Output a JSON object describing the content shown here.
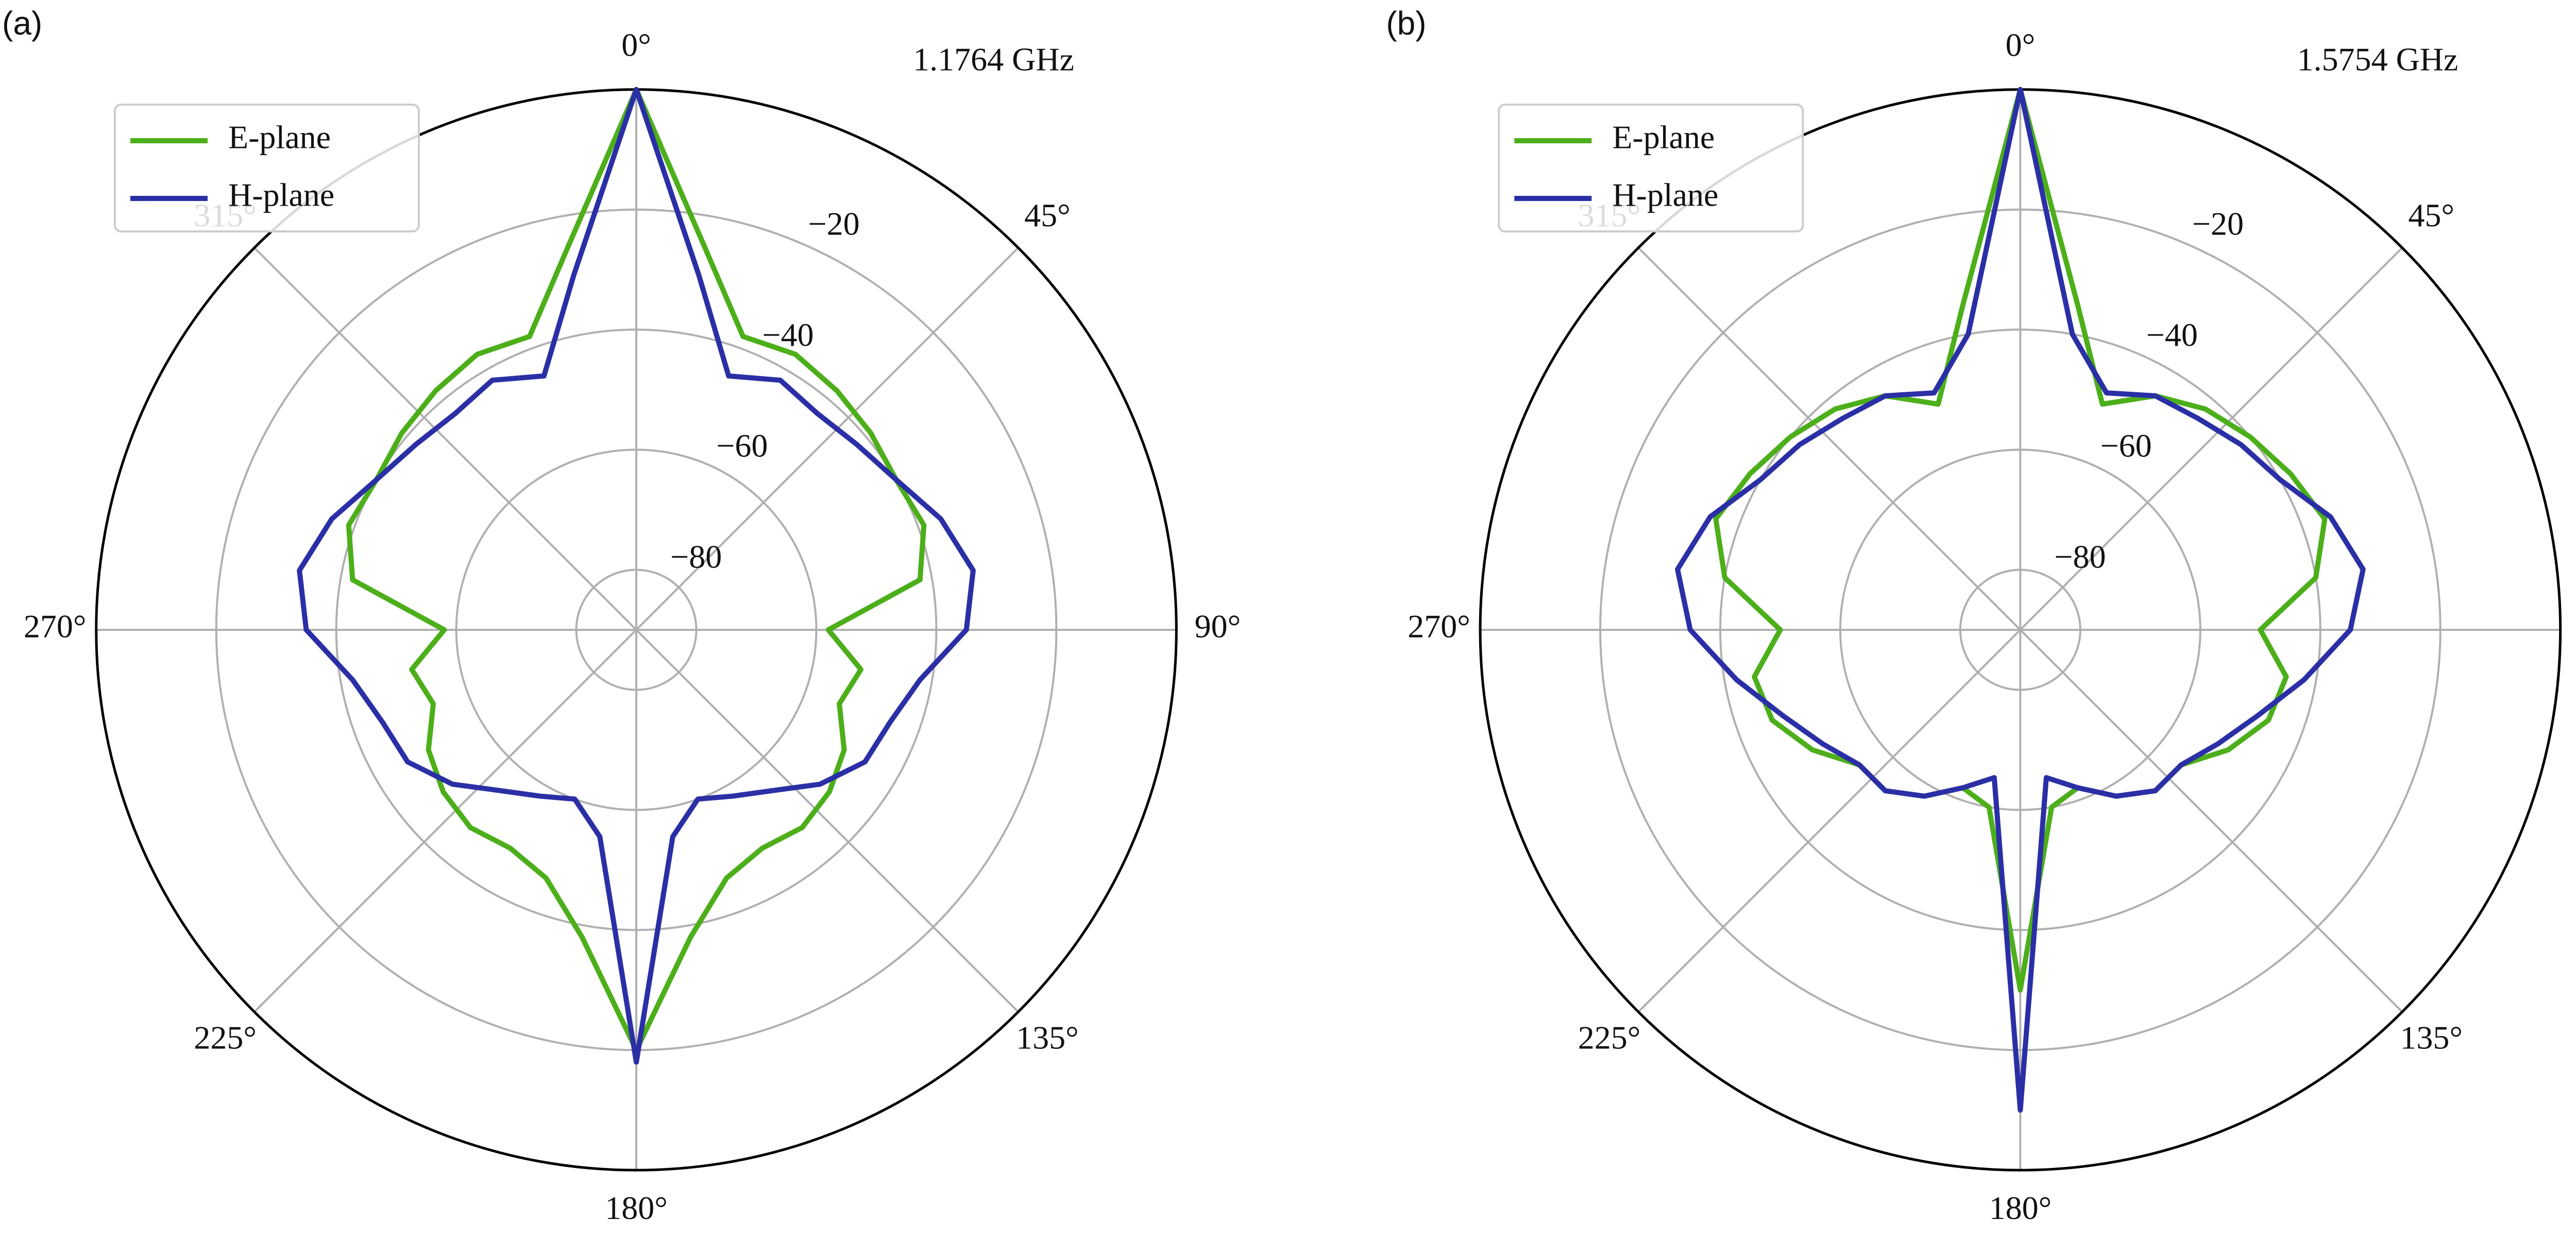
{
  "chart_data": [
    {
      "type": "polar",
      "panel_label": "(a)",
      "annotation": "1.1764 GHz",
      "theta": [
        0,
        10,
        20,
        30,
        40,
        50,
        60,
        70,
        80,
        90,
        100,
        110,
        120,
        130,
        140,
        150,
        160,
        170,
        180,
        190,
        200,
        210,
        220,
        230,
        240,
        250,
        260,
        270,
        280,
        290,
        300,
        310,
        320,
        330,
        340,
        350
      ],
      "series": [
        {
          "name": "E-plane",
          "color": "#4caf1a",
          "values": [
            0,
            -25,
            -38,
            -37,
            -38,
            -39,
            -40,
            -39,
            -42,
            -58,
            -52,
            -54,
            -50,
            -48,
            -47,
            -48,
            -46,
            -38,
            -20,
            -38,
            -46,
            -48,
            -47,
            -48,
            -50,
            -54,
            -52,
            -58,
            -42,
            -39,
            -40,
            -39,
            -38,
            -37,
            -38,
            -25
          ]
        },
        {
          "name": "H-plane",
          "color": "#2b2fa6",
          "values": [
            0,
            -30,
            -45,
            -42,
            -43,
            -42,
            -40,
            -36,
            -33,
            -35,
            -42,
            -45,
            -46,
            -50,
            -55,
            -58,
            -60,
            -55,
            -18,
            -55,
            -60,
            -58,
            -55,
            -50,
            -46,
            -45,
            -42,
            -35,
            -33,
            -36,
            -40,
            -42,
            -43,
            -42,
            -45,
            -30
          ]
        }
      ],
      "rlim": [
        -90,
        0
      ],
      "rticks": [
        {
          "value": -80,
          "label": "−80"
        },
        {
          "value": -60,
          "label": "−60"
        },
        {
          "value": -40,
          "label": "−40"
        },
        {
          "value": -20,
          "label": "−20"
        }
      ],
      "thetaticks": [
        {
          "value": 0,
          "label": "0°"
        },
        {
          "value": 45,
          "label": "45°"
        },
        {
          "value": 90,
          "label": "90°"
        },
        {
          "value": 135,
          "label": "135°"
        },
        {
          "value": 180,
          "label": "180°"
        },
        {
          "value": 225,
          "label": "225°"
        },
        {
          "value": 270,
          "label": "270°"
        },
        {
          "value": 315,
          "label": "315°"
        }
      ],
      "direction": "clockwise",
      "zero_location": "top",
      "grid": true,
      "legend": "upper left"
    },
    {
      "type": "polar",
      "panel_label": "(b)",
      "annotation": "1.5754 GHz",
      "theta": [
        0,
        10,
        20,
        30,
        40,
        50,
        60,
        70,
        80,
        90,
        100,
        110,
        120,
        130,
        140,
        150,
        160,
        170,
        180,
        190,
        200,
        210,
        220,
        230,
        240,
        250,
        260,
        270,
        280,
        290,
        300,
        310,
        320,
        330,
        340,
        350
      ],
      "series": [
        {
          "name": "E-plane",
          "color": "#4caf1a",
          "values": [
            0,
            -35,
            -50,
            -45,
            -42,
            -40,
            -38,
            -36,
            -40,
            -50,
            -45,
            -46,
            -50,
            -55,
            -55,
            -58,
            -62,
            -60,
            -30,
            -60,
            -62,
            -58,
            -55,
            -55,
            -50,
            -46,
            -45,
            -50,
            -40,
            -36,
            -38,
            -40,
            -42,
            -45,
            -50,
            -35
          ]
        },
        {
          "name": "H-plane",
          "color": "#2b2fa6",
          "values": [
            0,
            -40,
            -48,
            -45,
            -44,
            -42,
            -40,
            -35,
            -32,
            -35,
            -42,
            -48,
            -52,
            -55,
            -55,
            -58,
            -62,
            -65,
            -10,
            -65,
            -62,
            -58,
            -55,
            -55,
            -52,
            -48,
            -42,
            -35,
            -32,
            -35,
            -40,
            -42,
            -44,
            -45,
            -48,
            -40
          ]
        }
      ],
      "rlim": [
        -90,
        0
      ],
      "rticks": [
        {
          "value": -80,
          "label": "−80"
        },
        {
          "value": -60,
          "label": "−60"
        },
        {
          "value": -40,
          "label": "−40"
        },
        {
          "value": -20,
          "label": "−20"
        }
      ],
      "thetaticks": [
        {
          "value": 0,
          "label": "0°"
        },
        {
          "value": 45,
          "label": "45°"
        },
        {
          "value": 90,
          "label": "90°"
        },
        {
          "value": 135,
          "label": "135°"
        },
        {
          "value": 180,
          "label": "180°"
        },
        {
          "value": 225,
          "label": "225°"
        },
        {
          "value": 270,
          "label": "270°"
        },
        {
          "value": 315,
          "label": "315°"
        }
      ],
      "direction": "clockwise",
      "zero_location": "top",
      "grid": true,
      "legend": "upper left"
    }
  ]
}
